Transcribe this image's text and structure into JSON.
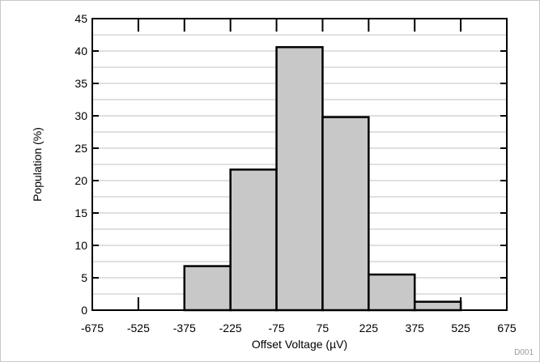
{
  "chart_data": {
    "type": "bar",
    "title": "",
    "xlabel": "Offset Voltage (µV)",
    "ylabel": "Population (%)",
    "figure_id": "D001",
    "xlim": [
      -675,
      675
    ],
    "ylim": [
      0,
      45
    ],
    "x_ticks": [
      "-675",
      "-525",
      "-375",
      "-225",
      "-75",
      "75",
      "225",
      "375",
      "525",
      "675"
    ],
    "y_ticks": [
      "0",
      "5",
      "10",
      "15",
      "20",
      "25",
      "30",
      "35",
      "40",
      "45"
    ],
    "y_minor_step": 2.5,
    "grid": true,
    "legend": "none",
    "bin_edges": [
      -675,
      -525,
      -375,
      -225,
      -75,
      75,
      225,
      375,
      525,
      675
    ],
    "values": [
      0,
      0,
      6.8,
      21.7,
      40.6,
      29.8,
      5.5,
      1.3,
      0
    ],
    "bar_color": "#c8c8c8",
    "edge_color": "#000000",
    "grid_color": "#c0c0c0"
  }
}
